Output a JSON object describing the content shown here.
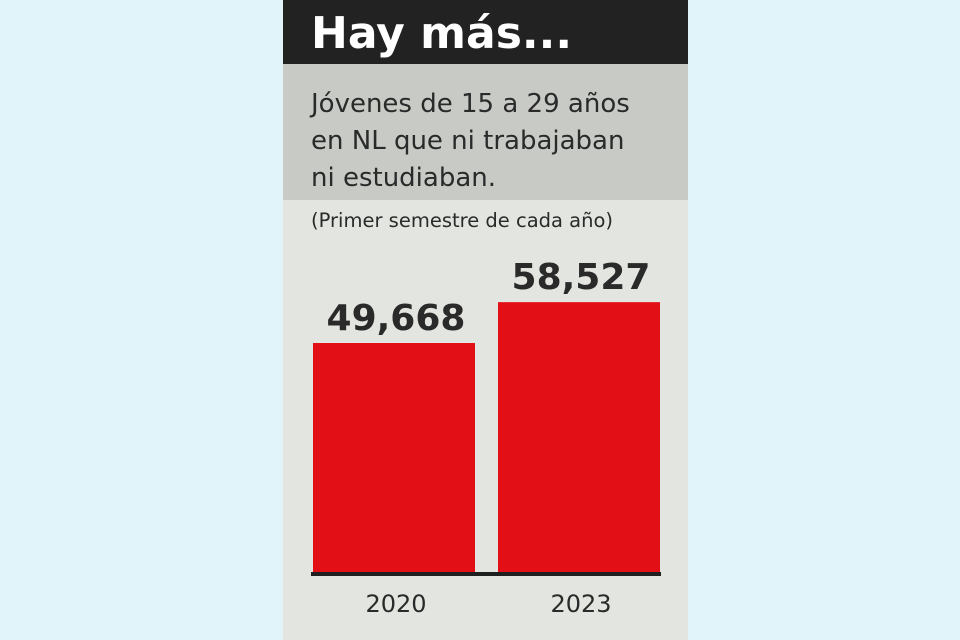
{
  "header": {
    "title": "Hay más..."
  },
  "subtitle": "Jóvenes de 15 a 29 años\nen NL que ni trabajaban\nni estudiaban.",
  "note": "(Primer semestre de cada año)",
  "colors": {
    "background": "#e0f4fa",
    "card": "#e3e6e0",
    "header": "#222222",
    "subtitle_box": "#c7cac5",
    "bar": "#e20f17",
    "axis": "#1f1f1f",
    "text": "#2a2a2a"
  },
  "chart_data": {
    "type": "bar",
    "title": "Hay más...",
    "subtitle": "Jóvenes de 15 a 29 años en NL que ni trabajaban ni estudiaban.",
    "note": "(Primer semestre de cada año)",
    "categories": [
      "2020",
      "2023"
    ],
    "values": [
      49668,
      58527
    ],
    "value_labels": [
      "49,668",
      "58,527"
    ],
    "xlabel": "",
    "ylabel": "",
    "ylim": [
      0,
      70000
    ],
    "grid": false,
    "legend": "none"
  }
}
